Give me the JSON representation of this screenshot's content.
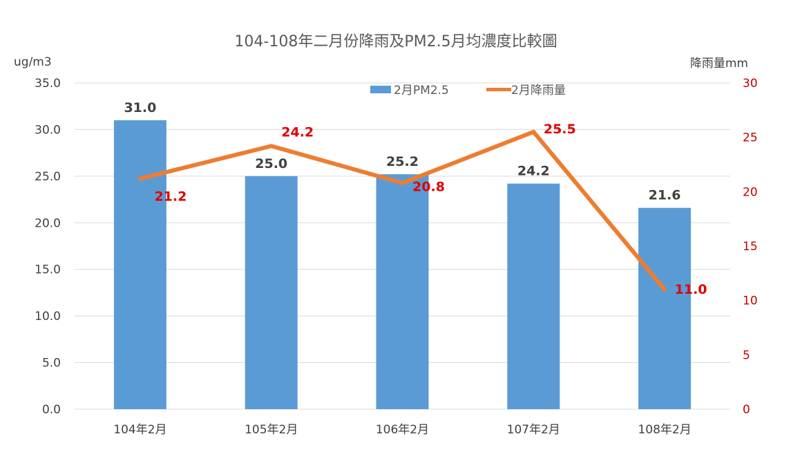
{
  "chart_data": {
    "type": "bar",
    "title": "104-108年二月份降雨及PM2.5月均濃度比較圖",
    "categories": [
      "104年2月",
      "105年2月",
      "106年2月",
      "107年2月",
      "108年2月"
    ],
    "y_left": {
      "unit_label": "ug/m3",
      "ylim": [
        0,
        35
      ],
      "ticks": [
        "0.0",
        "5.0",
        "10.0",
        "15.0",
        "20.0",
        "25.0",
        "30.0",
        "35.0"
      ]
    },
    "y_right": {
      "unit_label": "降雨量mm",
      "ylim": [
        0,
        30
      ],
      "ticks": [
        "0",
        "5",
        "10",
        "15",
        "20",
        "25",
        "30"
      ]
    },
    "series": [
      {
        "name": "2月PM2.5",
        "type": "bar",
        "axis": "left",
        "color": "#5b9bd5",
        "values": [
          31.0,
          25.0,
          25.2,
          24.2,
          21.6
        ],
        "labels": [
          "31.0",
          "25.0",
          "25.2",
          "24.2",
          "21.6"
        ]
      },
      {
        "name": "2月降雨量",
        "type": "line",
        "axis": "right",
        "color": "#ed7d31",
        "values": [
          21.2,
          24.2,
          20.8,
          25.5,
          11.0
        ],
        "labels": [
          "21.2",
          "24.2",
          "20.8",
          "25.5",
          "11.0"
        ]
      }
    ],
    "grid": true,
    "legend_position": "top-center"
  }
}
